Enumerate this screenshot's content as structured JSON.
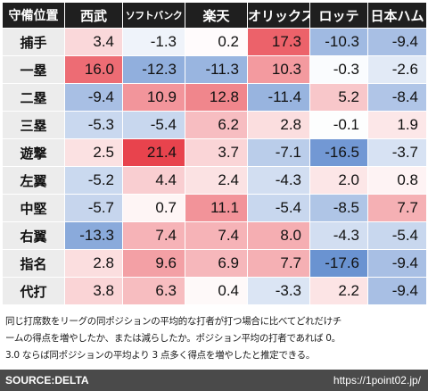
{
  "chart_data": {
    "type": "heatmap",
    "corner_label": "守備位置",
    "columns": [
      "西武",
      "ソフトバンク",
      "楽天",
      "オリックス",
      "ロッテ",
      "日本ハム"
    ],
    "rows": [
      {
        "label": "捕手",
        "values": [
          3.4,
          -1.3,
          0.2,
          17.3,
          -10.3,
          -9.4
        ]
      },
      {
        "label": "一塁",
        "values": [
          16.0,
          -12.3,
          -11.3,
          10.3,
          -0.3,
          -2.6
        ]
      },
      {
        "label": "二塁",
        "values": [
          -9.4,
          10.9,
          12.8,
          -11.4,
          5.2,
          -8.4
        ]
      },
      {
        "label": "三塁",
        "values": [
          -5.3,
          -5.4,
          6.2,
          2.8,
          -0.1,
          1.9
        ]
      },
      {
        "label": "遊撃",
        "values": [
          2.5,
          21.4,
          3.7,
          -7.1,
          -16.5,
          -3.7
        ]
      },
      {
        "label": "左翼",
        "values": [
          -5.2,
          4.4,
          2.4,
          -4.3,
          2.0,
          0.8
        ]
      },
      {
        "label": "中堅",
        "values": [
          -5.7,
          0.7,
          11.1,
          -5.4,
          -8.5,
          7.7
        ]
      },
      {
        "label": "右翼",
        "values": [
          -13.3,
          7.4,
          7.4,
          8.0,
          -4.3,
          -5.4
        ]
      },
      {
        "label": "指名",
        "values": [
          2.8,
          9.6,
          6.9,
          7.7,
          -17.6,
          -9.4
        ]
      },
      {
        "label": "代打",
        "values": [
          3.8,
          6.3,
          0.4,
          -3.3,
          2.2,
          -9.4
        ]
      }
    ],
    "colors": {
      "positive": "#e8434d",
      "negative": "#4f7fc9",
      "neutral": "#ffffff"
    }
  },
  "note_lines": [
    "同じ打席数をリーグの同ポジションの平均的な打者が打つ場合に比べてどれだけチ",
    "ームの得点を増やしたか、または減らしたか。ポジション平均の打者であれば 0。",
    "3.0 ならば同ポジションの平均より 3 点多く得点を増やしたと推定できる。"
  ],
  "footer": {
    "source": "SOURCE:DELTA",
    "site": "https://1point02.jp/"
  }
}
